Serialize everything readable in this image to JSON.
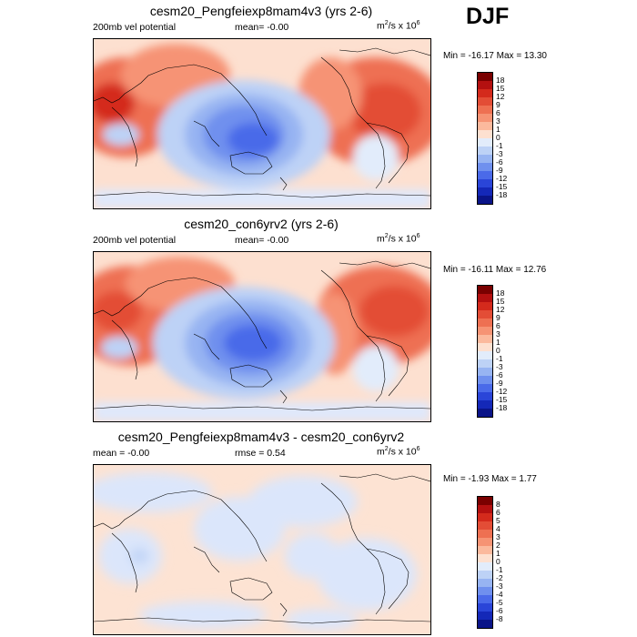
{
  "season": "DJF",
  "panels": [
    {
      "title": "cesm20_Pengfeiexp8mam4v3 (yrs 2-6)",
      "left_label": "200mb vel potential",
      "mid_label": "mean=  -0.00",
      "units": "m²/s x 10⁶",
      "minmax": "Min = -16.17 Max =  13.30",
      "colorbar_labels": [
        "18",
        "15",
        "12",
        "9",
        "6",
        "3",
        "1",
        "0",
        "-1",
        "-3",
        "-6",
        "-9",
        "-12",
        "-15",
        "-18"
      ]
    },
    {
      "title": "cesm20_con6yrv2 (yrs 2-6)",
      "left_label": "200mb vel potential",
      "mid_label": "mean=  -0.00",
      "units": "m²/s x 10⁶",
      "minmax": "Min = -16.11 Max =  12.76",
      "colorbar_labels": [
        "18",
        "15",
        "12",
        "9",
        "6",
        "3",
        "1",
        "0",
        "-1",
        "-3",
        "-6",
        "-9",
        "-12",
        "-15",
        "-18"
      ]
    },
    {
      "title": "cesm20_Pengfeiexp8mam4v3 - cesm20_con6yrv2",
      "left_label": "mean =  -0.00",
      "mid_label": "rmse =   0.54",
      "units": "m²/s x 10⁶",
      "minmax": "Min = -1.93 Max =   1.77",
      "colorbar_labels": [
        "8",
        "6",
        "5",
        "4",
        "3",
        "2",
        "1",
        "0",
        "-1",
        "-2",
        "-3",
        "-4",
        "-5",
        "-6",
        "-8"
      ]
    }
  ],
  "colors": {
    "colorbar": [
      "#7a0000",
      "#b41010",
      "#d42a1c",
      "#e34d36",
      "#ee7052",
      "#f69374",
      "#fbb99d",
      "#fde0d0",
      "#e2ecfb",
      "#bdd2f6",
      "#97b4f2",
      "#6f90ee",
      "#4a6ae9",
      "#2a45d8",
      "#1428b8",
      "#0a1488"
    ],
    "ocean_light": "#dfe8fb",
    "diff_pos": "#fde3d3",
    "diff_neg": "#dbe6fb"
  }
}
